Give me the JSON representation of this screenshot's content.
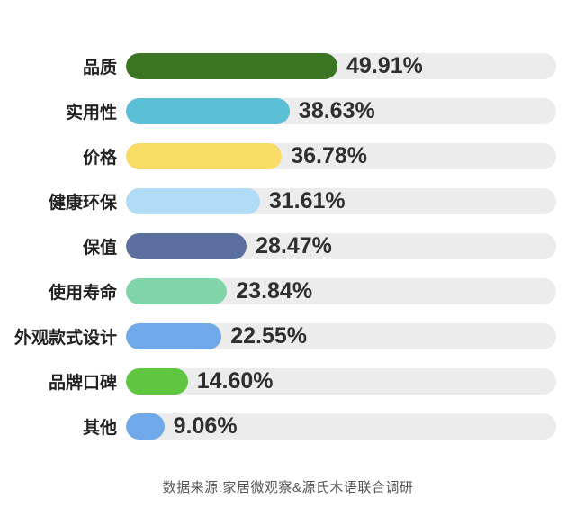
{
  "chart_data": {
    "type": "bar",
    "orientation": "horizontal",
    "title": "",
    "xlabel": "",
    "ylabel": "",
    "xlim": [
      0,
      101.5
    ],
    "grid": false,
    "legend": false,
    "categories": [
      "品质",
      "实用性",
      "价格",
      "健康环保",
      "保值",
      "使用寿命",
      "外观款式设计",
      "品牌口碑",
      "其他"
    ],
    "values": [
      49.91,
      38.63,
      36.78,
      31.61,
      28.47,
      23.84,
      22.55,
      14.6,
      9.06
    ],
    "value_labels": [
      "49.91%",
      "38.63%",
      "36.78%",
      "31.61%",
      "28.47%",
      "23.84%",
      "22.55%",
      "14.60%",
      "9.06%"
    ],
    "bar_colors": [
      "#3b7423",
      "#5bbfd6",
      "#f8dc66",
      "#b0dcf5",
      "#5a6f9e",
      "#80d5a8",
      "#70a9e9",
      "#5fc640",
      "#70a9e9"
    ],
    "track_color": "#ececec",
    "label_color": "#222222",
    "value_color": "#2f2f2f"
  },
  "source_note": "数据来源:家居微观察&源氏木语联合调研"
}
